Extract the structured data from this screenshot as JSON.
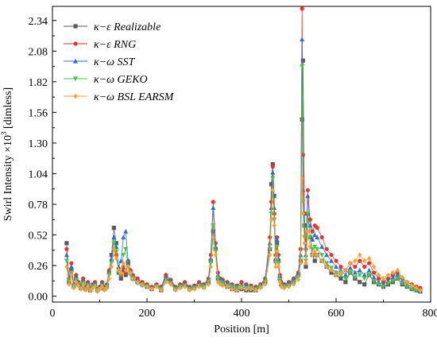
{
  "chart_data": {
    "type": "line",
    "xlabel": "Position [m]",
    "ylabel_prefix": "Swirl Intensity ×10",
    "ylabel_sup": "3",
    "ylabel_suffix": " [dimless]",
    "xlim": [
      0,
      800
    ],
    "ylim": [
      -0.05,
      2.46
    ],
    "xticks": [
      "0",
      "200",
      "400",
      "600",
      "800"
    ],
    "yticks": [
      "0.00",
      "0.26",
      "0.52",
      "0.78",
      "1.04",
      "1.30",
      "1.56",
      "1.82",
      "2.08",
      "2.34"
    ],
    "xtick_values": [
      0,
      200,
      400,
      600,
      800
    ],
    "ytick_values": [
      0.0,
      0.26,
      0.52,
      0.78,
      1.04,
      1.3,
      1.56,
      1.82,
      2.08,
      2.34
    ],
    "grid": false,
    "legend_position": "top-left",
    "series": [
      {
        "name": "κ−ε  Realizable",
        "color": "#5a5a5a",
        "marker": "square",
        "x": [
          30,
          35,
          40,
          45,
          50,
          55,
          60,
          65,
          70,
          75,
          80,
          85,
          90,
          95,
          100,
          105,
          110,
          115,
          120,
          125,
          130,
          135,
          140,
          145,
          150,
          155,
          160,
          165,
          170,
          180,
          190,
          200,
          210,
          220,
          230,
          240,
          250,
          260,
          270,
          280,
          290,
          300,
          310,
          320,
          330,
          335,
          340,
          345,
          350,
          355,
          360,
          370,
          380,
          390,
          400,
          410,
          420,
          430,
          440,
          450,
          460,
          463,
          466,
          469,
          472,
          475,
          478,
          481,
          484,
          490,
          500,
          510,
          520,
          525,
          528,
          530,
          533,
          536,
          540,
          545,
          550,
          555,
          560,
          570,
          580,
          590,
          600,
          610,
          620,
          630,
          640,
          650,
          660,
          670,
          680,
          690,
          700,
          710,
          720,
          730,
          740,
          750,
          760,
          770,
          778
        ],
        "y": [
          0.45,
          0.12,
          0.22,
          0.08,
          0.15,
          0.1,
          0.07,
          0.12,
          0.06,
          0.1,
          0.05,
          0.08,
          0.1,
          0.05,
          0.07,
          0.1,
          0.06,
          0.08,
          0.2,
          0.35,
          0.58,
          0.45,
          0.2,
          0.15,
          0.22,
          0.18,
          0.28,
          0.2,
          0.15,
          0.12,
          0.1,
          0.08,
          0.06,
          0.09,
          0.05,
          0.15,
          0.12,
          0.06,
          0.08,
          0.1,
          0.06,
          0.07,
          0.1,
          0.08,
          0.12,
          0.3,
          0.55,
          0.4,
          0.15,
          0.12,
          0.1,
          0.08,
          0.06,
          0.05,
          0.06,
          0.05,
          0.05,
          0.05,
          0.08,
          0.12,
          0.4,
          0.95,
          1.12,
          0.85,
          0.3,
          0.45,
          0.3,
          0.15,
          0.1,
          0.08,
          0.1,
          0.12,
          0.18,
          0.3,
          1.5,
          2.0,
          0.6,
          0.25,
          0.7,
          0.5,
          0.35,
          0.3,
          0.35,
          0.3,
          0.25,
          0.2,
          0.18,
          0.15,
          0.12,
          0.2,
          0.15,
          0.12,
          0.1,
          0.18,
          0.12,
          0.1,
          0.08,
          0.1,
          0.12,
          0.15,
          0.1,
          0.08,
          0.06,
          0.05,
          0.04
        ]
      },
      {
        "name": "κ−ε  RNG",
        "color": "#e8332a",
        "marker": "circle",
        "x": [
          30,
          35,
          40,
          45,
          50,
          55,
          60,
          65,
          70,
          75,
          80,
          85,
          90,
          95,
          100,
          105,
          110,
          115,
          120,
          125,
          130,
          135,
          140,
          145,
          150,
          155,
          160,
          165,
          170,
          180,
          190,
          200,
          210,
          220,
          230,
          240,
          250,
          260,
          270,
          280,
          290,
          300,
          310,
          320,
          330,
          335,
          340,
          345,
          350,
          355,
          360,
          370,
          380,
          390,
          400,
          410,
          420,
          430,
          440,
          450,
          460,
          463,
          466,
          469,
          472,
          475,
          478,
          481,
          484,
          490,
          500,
          510,
          520,
          525,
          528,
          530,
          533,
          536,
          540,
          545,
          550,
          555,
          560,
          570,
          580,
          590,
          600,
          610,
          620,
          630,
          640,
          650,
          660,
          670,
          680,
          690,
          700,
          710,
          720,
          730,
          740,
          750,
          760,
          770,
          778
        ],
        "y": [
          0.4,
          0.15,
          0.28,
          0.1,
          0.18,
          0.12,
          0.09,
          0.15,
          0.08,
          0.12,
          0.07,
          0.1,
          0.12,
          0.06,
          0.08,
          0.12,
          0.08,
          0.1,
          0.22,
          0.3,
          0.4,
          0.35,
          0.22,
          0.18,
          0.25,
          0.2,
          0.3,
          0.22,
          0.18,
          0.15,
          0.12,
          0.1,
          0.08,
          0.1,
          0.08,
          0.18,
          0.14,
          0.08,
          0.1,
          0.12,
          0.08,
          0.09,
          0.12,
          0.1,
          0.15,
          0.35,
          0.8,
          0.45,
          0.2,
          0.15,
          0.14,
          0.12,
          0.1,
          0.09,
          0.12,
          0.1,
          0.09,
          0.08,
          0.1,
          0.15,
          0.5,
          0.8,
          1.1,
          0.7,
          0.35,
          0.5,
          0.35,
          0.18,
          0.12,
          0.1,
          0.12,
          0.15,
          0.2,
          0.4,
          2.44,
          1.2,
          0.7,
          0.4,
          0.9,
          0.65,
          0.55,
          0.6,
          0.58,
          0.5,
          0.4,
          0.35,
          0.3,
          0.25,
          0.22,
          0.28,
          0.25,
          0.3,
          0.25,
          0.28,
          0.2,
          0.15,
          0.12,
          0.15,
          0.18,
          0.2,
          0.15,
          0.12,
          0.1,
          0.08,
          0.07
        ]
      },
      {
        "name": "κ−ω  SST",
        "color": "#2e6fd1",
        "marker": "triangle",
        "x": [
          30,
          35,
          40,
          45,
          50,
          55,
          60,
          65,
          70,
          75,
          80,
          85,
          90,
          95,
          100,
          105,
          110,
          115,
          120,
          125,
          130,
          135,
          140,
          145,
          150,
          155,
          160,
          165,
          170,
          180,
          190,
          200,
          210,
          220,
          230,
          240,
          250,
          260,
          270,
          280,
          290,
          300,
          310,
          320,
          330,
          335,
          340,
          345,
          350,
          355,
          360,
          370,
          380,
          390,
          400,
          410,
          420,
          430,
          440,
          450,
          460,
          463,
          466,
          469,
          472,
          475,
          478,
          481,
          484,
          490,
          500,
          510,
          520,
          525,
          528,
          530,
          533,
          536,
          540,
          545,
          550,
          555,
          560,
          570,
          580,
          590,
          600,
          610,
          620,
          630,
          640,
          650,
          660,
          670,
          680,
          690,
          700,
          710,
          720,
          730,
          740,
          750,
          760,
          770,
          778
        ],
        "y": [
          0.35,
          0.14,
          0.25,
          0.09,
          0.16,
          0.11,
          0.08,
          0.13,
          0.07,
          0.11,
          0.06,
          0.09,
          0.11,
          0.06,
          0.07,
          0.11,
          0.07,
          0.09,
          0.2,
          0.32,
          0.5,
          0.42,
          0.25,
          0.3,
          0.5,
          0.55,
          0.3,
          0.2,
          0.16,
          0.13,
          0.11,
          0.09,
          0.07,
          0.09,
          0.07,
          0.16,
          0.13,
          0.07,
          0.09,
          0.11,
          0.07,
          0.08,
          0.11,
          0.09,
          0.14,
          0.32,
          0.75,
          0.42,
          0.18,
          0.14,
          0.13,
          0.11,
          0.09,
          0.08,
          0.1,
          0.09,
          0.08,
          0.07,
          0.09,
          0.14,
          0.45,
          0.75,
          1.05,
          0.75,
          0.32,
          0.48,
          0.32,
          0.16,
          0.11,
          0.09,
          0.11,
          0.14,
          0.19,
          0.35,
          2.18,
          0.9,
          0.6,
          0.35,
          0.85,
          0.6,
          0.48,
          0.52,
          0.5,
          0.42,
          0.35,
          0.3,
          0.25,
          0.22,
          0.18,
          0.24,
          0.2,
          0.22,
          0.18,
          0.22,
          0.16,
          0.12,
          0.1,
          0.13,
          0.16,
          0.18,
          0.13,
          0.1,
          0.08,
          0.06,
          0.05
        ]
      },
      {
        "name": "κ−ω  GEKO",
        "color": "#4cc24c",
        "marker": "triangle-down",
        "x": [
          30,
          35,
          40,
          45,
          50,
          55,
          60,
          65,
          70,
          75,
          80,
          85,
          90,
          95,
          100,
          105,
          110,
          115,
          120,
          125,
          130,
          135,
          140,
          145,
          150,
          155,
          160,
          165,
          170,
          180,
          190,
          200,
          210,
          220,
          230,
          240,
          250,
          260,
          270,
          280,
          290,
          300,
          310,
          320,
          330,
          335,
          340,
          345,
          350,
          355,
          360,
          370,
          380,
          390,
          400,
          410,
          420,
          430,
          440,
          450,
          460,
          463,
          466,
          469,
          472,
          475,
          478,
          481,
          484,
          490,
          500,
          510,
          520,
          525,
          528,
          530,
          533,
          536,
          540,
          545,
          550,
          555,
          560,
          570,
          580,
          590,
          600,
          610,
          620,
          630,
          640,
          650,
          660,
          670,
          680,
          690,
          700,
          710,
          720,
          730,
          740,
          750,
          760,
          770,
          778
        ],
        "y": [
          0.3,
          0.12,
          0.2,
          0.08,
          0.14,
          0.1,
          0.07,
          0.11,
          0.06,
          0.09,
          0.05,
          0.08,
          0.09,
          0.05,
          0.06,
          0.09,
          0.06,
          0.08,
          0.18,
          0.28,
          0.45,
          0.38,
          0.2,
          0.18,
          0.35,
          0.4,
          0.25,
          0.18,
          0.14,
          0.11,
          0.09,
          0.08,
          0.06,
          0.08,
          0.06,
          0.14,
          0.11,
          0.06,
          0.08,
          0.09,
          0.06,
          0.07,
          0.09,
          0.08,
          0.12,
          0.28,
          0.6,
          0.38,
          0.15,
          0.12,
          0.11,
          0.09,
          0.08,
          0.07,
          0.08,
          0.07,
          0.07,
          0.06,
          0.08,
          0.12,
          0.4,
          0.7,
          1.0,
          0.65,
          0.28,
          0.42,
          0.28,
          0.14,
          0.09,
          0.08,
          0.09,
          0.12,
          0.16,
          0.3,
          1.95,
          0.8,
          0.5,
          0.3,
          0.7,
          0.5,
          0.4,
          0.42,
          0.4,
          0.35,
          0.28,
          0.24,
          0.2,
          0.18,
          0.15,
          0.2,
          0.16,
          0.18,
          0.15,
          0.18,
          0.13,
          0.1,
          0.08,
          0.11,
          0.13,
          0.15,
          0.11,
          0.08,
          0.06,
          0.05,
          0.04
        ]
      },
      {
        "name": "κ−ω  BSL EARSM",
        "color": "#f5a23a",
        "marker": "diamond",
        "x": [
          30,
          35,
          40,
          45,
          50,
          55,
          60,
          65,
          70,
          75,
          80,
          85,
          90,
          95,
          100,
          105,
          110,
          115,
          120,
          125,
          130,
          135,
          140,
          145,
          150,
          155,
          160,
          165,
          170,
          180,
          190,
          200,
          210,
          220,
          230,
          240,
          250,
          260,
          270,
          280,
          290,
          300,
          310,
          320,
          330,
          335,
          340,
          345,
          350,
          355,
          360,
          370,
          380,
          390,
          400,
          410,
          420,
          430,
          440,
          450,
          460,
          463,
          466,
          469,
          472,
          475,
          478,
          481,
          484,
          490,
          500,
          510,
          520,
          525,
          528,
          530,
          533,
          536,
          540,
          545,
          550,
          555,
          560,
          570,
          580,
          590,
          600,
          610,
          620,
          630,
          640,
          650,
          660,
          670,
          680,
          690,
          700,
          710,
          720,
          730,
          740,
          750,
          760,
          770,
          778
        ],
        "y": [
          0.25,
          0.1,
          0.18,
          0.07,
          0.12,
          0.09,
          0.06,
          0.1,
          0.05,
          0.08,
          0.05,
          0.07,
          0.08,
          0.04,
          0.06,
          0.08,
          0.05,
          0.07,
          0.15,
          0.25,
          0.4,
          0.32,
          0.22,
          0.2,
          0.28,
          0.22,
          0.25,
          0.2,
          0.15,
          0.12,
          0.1,
          0.08,
          0.06,
          0.08,
          0.05,
          0.12,
          0.1,
          0.05,
          0.07,
          0.08,
          0.05,
          0.06,
          0.08,
          0.07,
          0.1,
          0.25,
          0.5,
          0.35,
          0.12,
          0.1,
          0.09,
          0.08,
          0.06,
          0.05,
          0.07,
          0.06,
          0.06,
          0.05,
          0.07,
          0.1,
          0.35,
          0.65,
          0.9,
          0.6,
          0.25,
          0.38,
          0.25,
          0.12,
          0.08,
          0.07,
          0.08,
          0.1,
          0.14,
          0.28,
          1.0,
          0.7,
          0.45,
          0.28,
          0.55,
          0.42,
          0.35,
          0.38,
          0.35,
          0.3,
          0.25,
          0.22,
          0.18,
          0.2,
          0.22,
          0.28,
          0.3,
          0.35,
          0.3,
          0.32,
          0.25,
          0.18,
          0.15,
          0.18,
          0.2,
          0.22,
          0.16,
          0.12,
          0.09,
          0.07,
          0.05
        ]
      }
    ]
  }
}
